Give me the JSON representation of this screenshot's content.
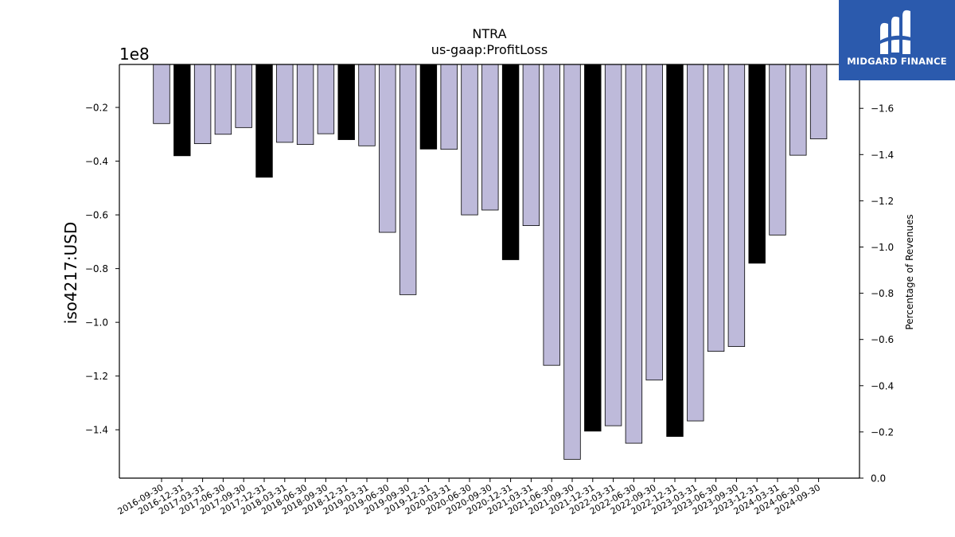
{
  "chart_data": {
    "type": "bar",
    "title": "NTRA",
    "subtitle": "us-gaap:ProfitLoss",
    "ylabel": "iso4217:USD",
    "y2label": "Percentage of Revenues",
    "offset_text": "1e8",
    "ylim": [
      -158000000.0,
      -4000000.0
    ],
    "y2lim": [
      0.0,
      1.79
    ],
    "y_ticks": [
      -0.2,
      -0.4,
      -0.6,
      -0.8,
      -1.0,
      -1.2,
      -1.4
    ],
    "y_tick_labels": [
      "−0.2",
      "−0.4",
      "−0.6",
      "−0.8",
      "−1.0",
      "−1.2",
      "−1.4"
    ],
    "y2_ticks": [
      0.0,
      0.2,
      0.4,
      0.6,
      0.8,
      1.0,
      1.2,
      1.4,
      1.6
    ],
    "y2_tick_labels": [
      "0.0",
      "−0.2",
      "−0.4",
      "−0.6",
      "−0.8",
      "−1.0",
      "−1.2",
      "−1.4",
      "−1.6"
    ],
    "categories": [
      "2016-09-30",
      "2016-12-31",
      "2017-03-31",
      "2017-06-30",
      "2017-09-30",
      "2017-12-31",
      "2018-03-31",
      "2018-06-30",
      "2018-09-30",
      "2018-12-31",
      "2019-03-31",
      "2019-06-30",
      "2019-09-30",
      "2019-12-31",
      "2020-03-31",
      "2020-06-30",
      "2020-09-30",
      "2020-12-31",
      "2021-03-31",
      "2021-06-30",
      "2021-09-30",
      "2021-12-31",
      "2022-03-31",
      "2022-06-30",
      "2022-09-30",
      "2022-12-31",
      "2023-03-31",
      "2023-06-30",
      "2023-09-30",
      "2023-12-31",
      "2024-03-31",
      "2024-06-30",
      "2024-09-30"
    ],
    "values": [
      -26000000,
      -38000000,
      -33500000,
      -30000000,
      -27500000,
      -46000000,
      -33000000,
      -33800000,
      -29800000,
      -32000000,
      -34300000,
      -66500000,
      -89700000,
      -35500000,
      -35600000,
      -60000000,
      -58200000,
      -76700000,
      -64000000,
      -116000000,
      -151000000,
      -140500000,
      -138500000,
      -145000000,
      -121500000,
      -142500000,
      -136700000,
      -110800000,
      -109000000,
      -78000000,
      -67500000,
      -37800000,
      -31700000
    ],
    "highlight": [
      false,
      true,
      false,
      false,
      false,
      true,
      false,
      false,
      false,
      true,
      false,
      false,
      false,
      true,
      false,
      false,
      false,
      true,
      false,
      false,
      false,
      true,
      false,
      false,
      false,
      true,
      false,
      false,
      false,
      true,
      false,
      false,
      false
    ],
    "colors": {
      "bar": "#bebada",
      "highlight": "#000000",
      "edge": "#000000"
    },
    "grid": false,
    "legend": "none"
  },
  "logo": {
    "text": "MIDGARD FINANCE",
    "background": "#2b5aad"
  }
}
